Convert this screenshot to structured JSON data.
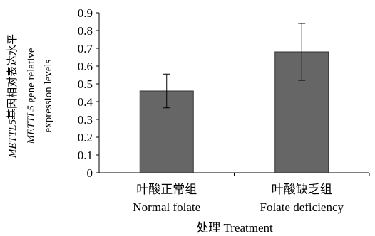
{
  "chart_data": {
    "type": "bar",
    "categories": [
      {
        "zh": "叶酸正常组",
        "en": "Normal folate"
      },
      {
        "zh": "叶酸缺乏组",
        "en": "Folate deficiency"
      }
    ],
    "values": [
      0.46,
      0.68
    ],
    "error_bars": [
      {
        "low": 0.365,
        "high": 0.555
      },
      {
        "low": 0.52,
        "high": 0.84
      }
    ],
    "xlabel": "处理 Treatment",
    "ylabel_lines": [
      {
        "italic": "METTL5",
        "rest": "基因相对表达水平"
      },
      {
        "italic": "METTL5",
        "rest": " gene relative"
      },
      {
        "italic": "",
        "rest": "expression levels"
      }
    ],
    "ylim": [
      0,
      0.9
    ],
    "yticks": [
      0,
      0.1,
      0.2,
      0.3,
      0.4,
      0.5,
      0.6,
      0.7,
      0.8,
      0.9
    ],
    "ytick_labels": [
      "0",
      "0.1",
      "0.2",
      "0.3",
      "0.4",
      "0.5",
      "0.6",
      "0.7",
      "0.8",
      "0.9"
    ],
    "grid": false,
    "bar_color": "#666666"
  }
}
